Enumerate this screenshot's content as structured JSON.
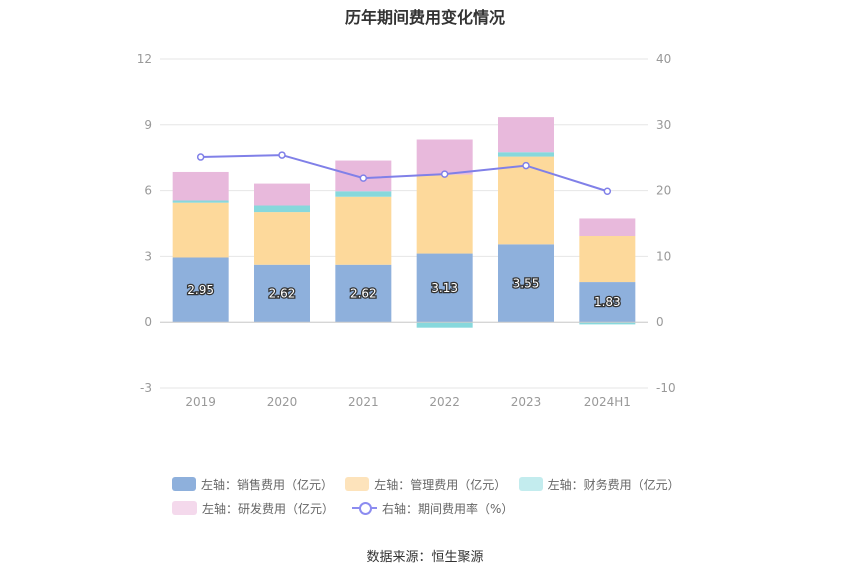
{
  "title": "历年期间费用变化情况",
  "source": "数据来源：恒生聚源",
  "chart_data": {
    "type": "bar",
    "stacked": true,
    "categories": [
      "2019",
      "2020",
      "2021",
      "2022",
      "2023",
      "2024H1"
    ],
    "y_left": {
      "ylim": [
        -3,
        12
      ],
      "ticks": [
        -3,
        0,
        3,
        6,
        9,
        12
      ]
    },
    "y_right": {
      "ylim": [
        -10,
        40
      ],
      "ticks": [
        -10,
        0,
        10,
        20,
        30,
        40
      ]
    },
    "series": [
      {
        "name": "左轴：销售费用（亿元）",
        "axis": "left",
        "kind": "bar",
        "color": "#8eb0dc",
        "values": [
          2.95,
          2.62,
          2.62,
          3.13,
          3.55,
          1.83
        ],
        "labels": [
          "2.95",
          "2.62",
          "2.62",
          "3.13",
          "3.55",
          "1.83"
        ]
      },
      {
        "name": "左轴：管理费用（亿元）",
        "axis": "left",
        "kind": "bar",
        "color": "#fdd99b",
        "values": [
          2.5,
          2.4,
          3.1,
          3.6,
          4.0,
          2.1
        ]
      },
      {
        "name": "左轴：财务费用（亿元）",
        "axis": "left",
        "kind": "bar",
        "color": "#87d8dc",
        "values": [
          0.1,
          0.3,
          0.25,
          -0.25,
          0.2,
          -0.1
        ]
      },
      {
        "name": "左轴：研发费用（亿元）",
        "axis": "left",
        "kind": "bar",
        "color": "#e8b9dc",
        "values": [
          1.3,
          1.0,
          1.4,
          1.6,
          1.6,
          0.8
        ]
      },
      {
        "name": "右轴：期间费用率（%）",
        "axis": "right",
        "kind": "line",
        "color": "#8080e8",
        "values": [
          25.1,
          25.4,
          21.9,
          22.5,
          23.8,
          19.9
        ]
      }
    ],
    "legend_position": "bottom",
    "grid": true
  },
  "legend": {
    "items": [
      {
        "label": "左轴：销售费用（亿元）",
        "color": "#8eb0dc"
      },
      {
        "label": "左轴：管理费用（亿元）",
        "color": "#fde3bb"
      },
      {
        "label": "左轴：财务费用（亿元）",
        "color": "#c3ecee"
      },
      {
        "label": "左轴：研发费用（亿元）",
        "color": "#f4d9ec"
      },
      {
        "label": "右轴：期间费用率（%）",
        "color": "#8c8cf0"
      }
    ]
  }
}
